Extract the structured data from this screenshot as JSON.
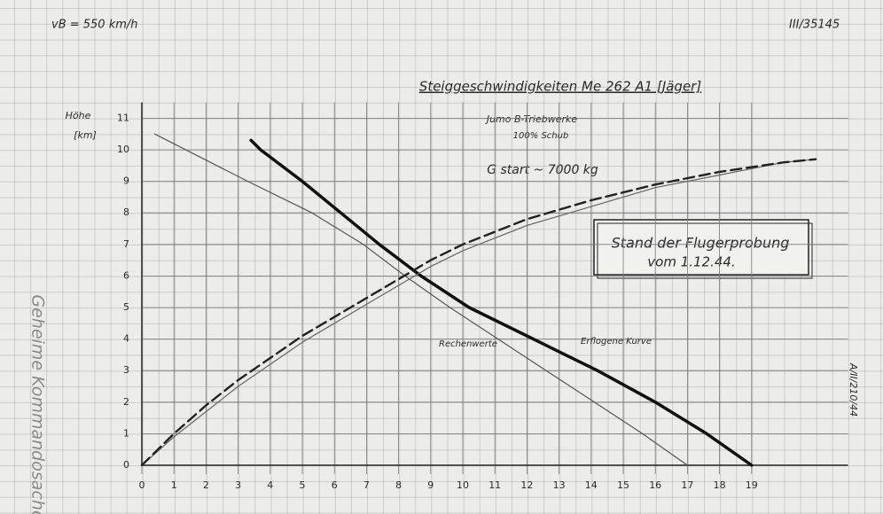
{
  "chart_data": {
    "type": "line",
    "title": "Steiggeschwindigkeiten Me 262 A1 [Jäger]",
    "speed_note": "vB = 550 km/h",
    "file_number": "III/35145",
    "engine_note": "Jumo B-Triebwerke",
    "thrust_note": "100% Schub",
    "weight_note": "G start ~ 7000 kg",
    "status_box": [
      "Stand der Flugerprobung",
      "vom 1.12.44."
    ],
    "side_number": "A/II/210/44",
    "stamp": "Geheime Kommandosache",
    "y_label": "Höhe",
    "y_unit": "[km]",
    "xlim": [
      0,
      22
    ],
    "ylim": [
      0,
      11.5
    ],
    "xticks": [
      0,
      1,
      2,
      3,
      4,
      5,
      6,
      7,
      8,
      9,
      10,
      11,
      12,
      13,
      14,
      15,
      16,
      17,
      18,
      19
    ],
    "yticks": [
      0,
      1,
      2,
      3,
      4,
      5,
      6,
      7,
      8,
      9,
      10,
      11
    ],
    "grid": true,
    "series": [
      {
        "name": "Rechenwerte",
        "color": "#555",
        "width": 1.2,
        "dashed": false,
        "x": [
          0.4,
          3.3,
          5.3,
          6.9,
          8.2,
          9.6,
          11.1,
          12.6,
          14.1,
          15.6,
          17.0
        ],
        "values": [
          10.5,
          9,
          8,
          7,
          6,
          5,
          4,
          3,
          2,
          1,
          0
        ]
      },
      {
        "name": "Erflogene Kurve",
        "color": "#111",
        "width": 3.5,
        "dashed": false,
        "x": [
          3.4,
          3.7,
          5.0,
          6.2,
          7.4,
          8.7,
          10.2,
          12.2,
          14.2,
          16.0,
          17.6,
          19.0
        ],
        "values": [
          10.3,
          10,
          9,
          8,
          7,
          6,
          5,
          4,
          3,
          2,
          1,
          0
        ]
      },
      {
        "color": "#666",
        "width": 1.2,
        "dashed": false,
        "x": [
          0,
          1,
          2,
          3,
          4,
          5,
          6,
          7,
          8,
          9,
          10,
          12,
          14,
          16,
          18,
          20,
          21
        ],
        "values": [
          0,
          0.9,
          1.7,
          2.5,
          3.2,
          3.9,
          4.5,
          5.1,
          5.7,
          6.3,
          6.8,
          7.6,
          8.2,
          8.8,
          9.2,
          9.6,
          9.7
        ]
      },
      {
        "color": "#222",
        "width": 2.4,
        "dashed": true,
        "x": [
          0,
          1,
          2,
          3,
          4,
          5,
          6,
          7,
          8,
          9,
          10,
          12,
          14,
          16,
          18,
          20,
          21
        ],
        "values": [
          0,
          1.0,
          1.9,
          2.7,
          3.4,
          4.1,
          4.7,
          5.3,
          5.9,
          6.5,
          7.0,
          7.8,
          8.4,
          8.9,
          9.3,
          9.6,
          9.7
        ]
      }
    ]
  }
}
